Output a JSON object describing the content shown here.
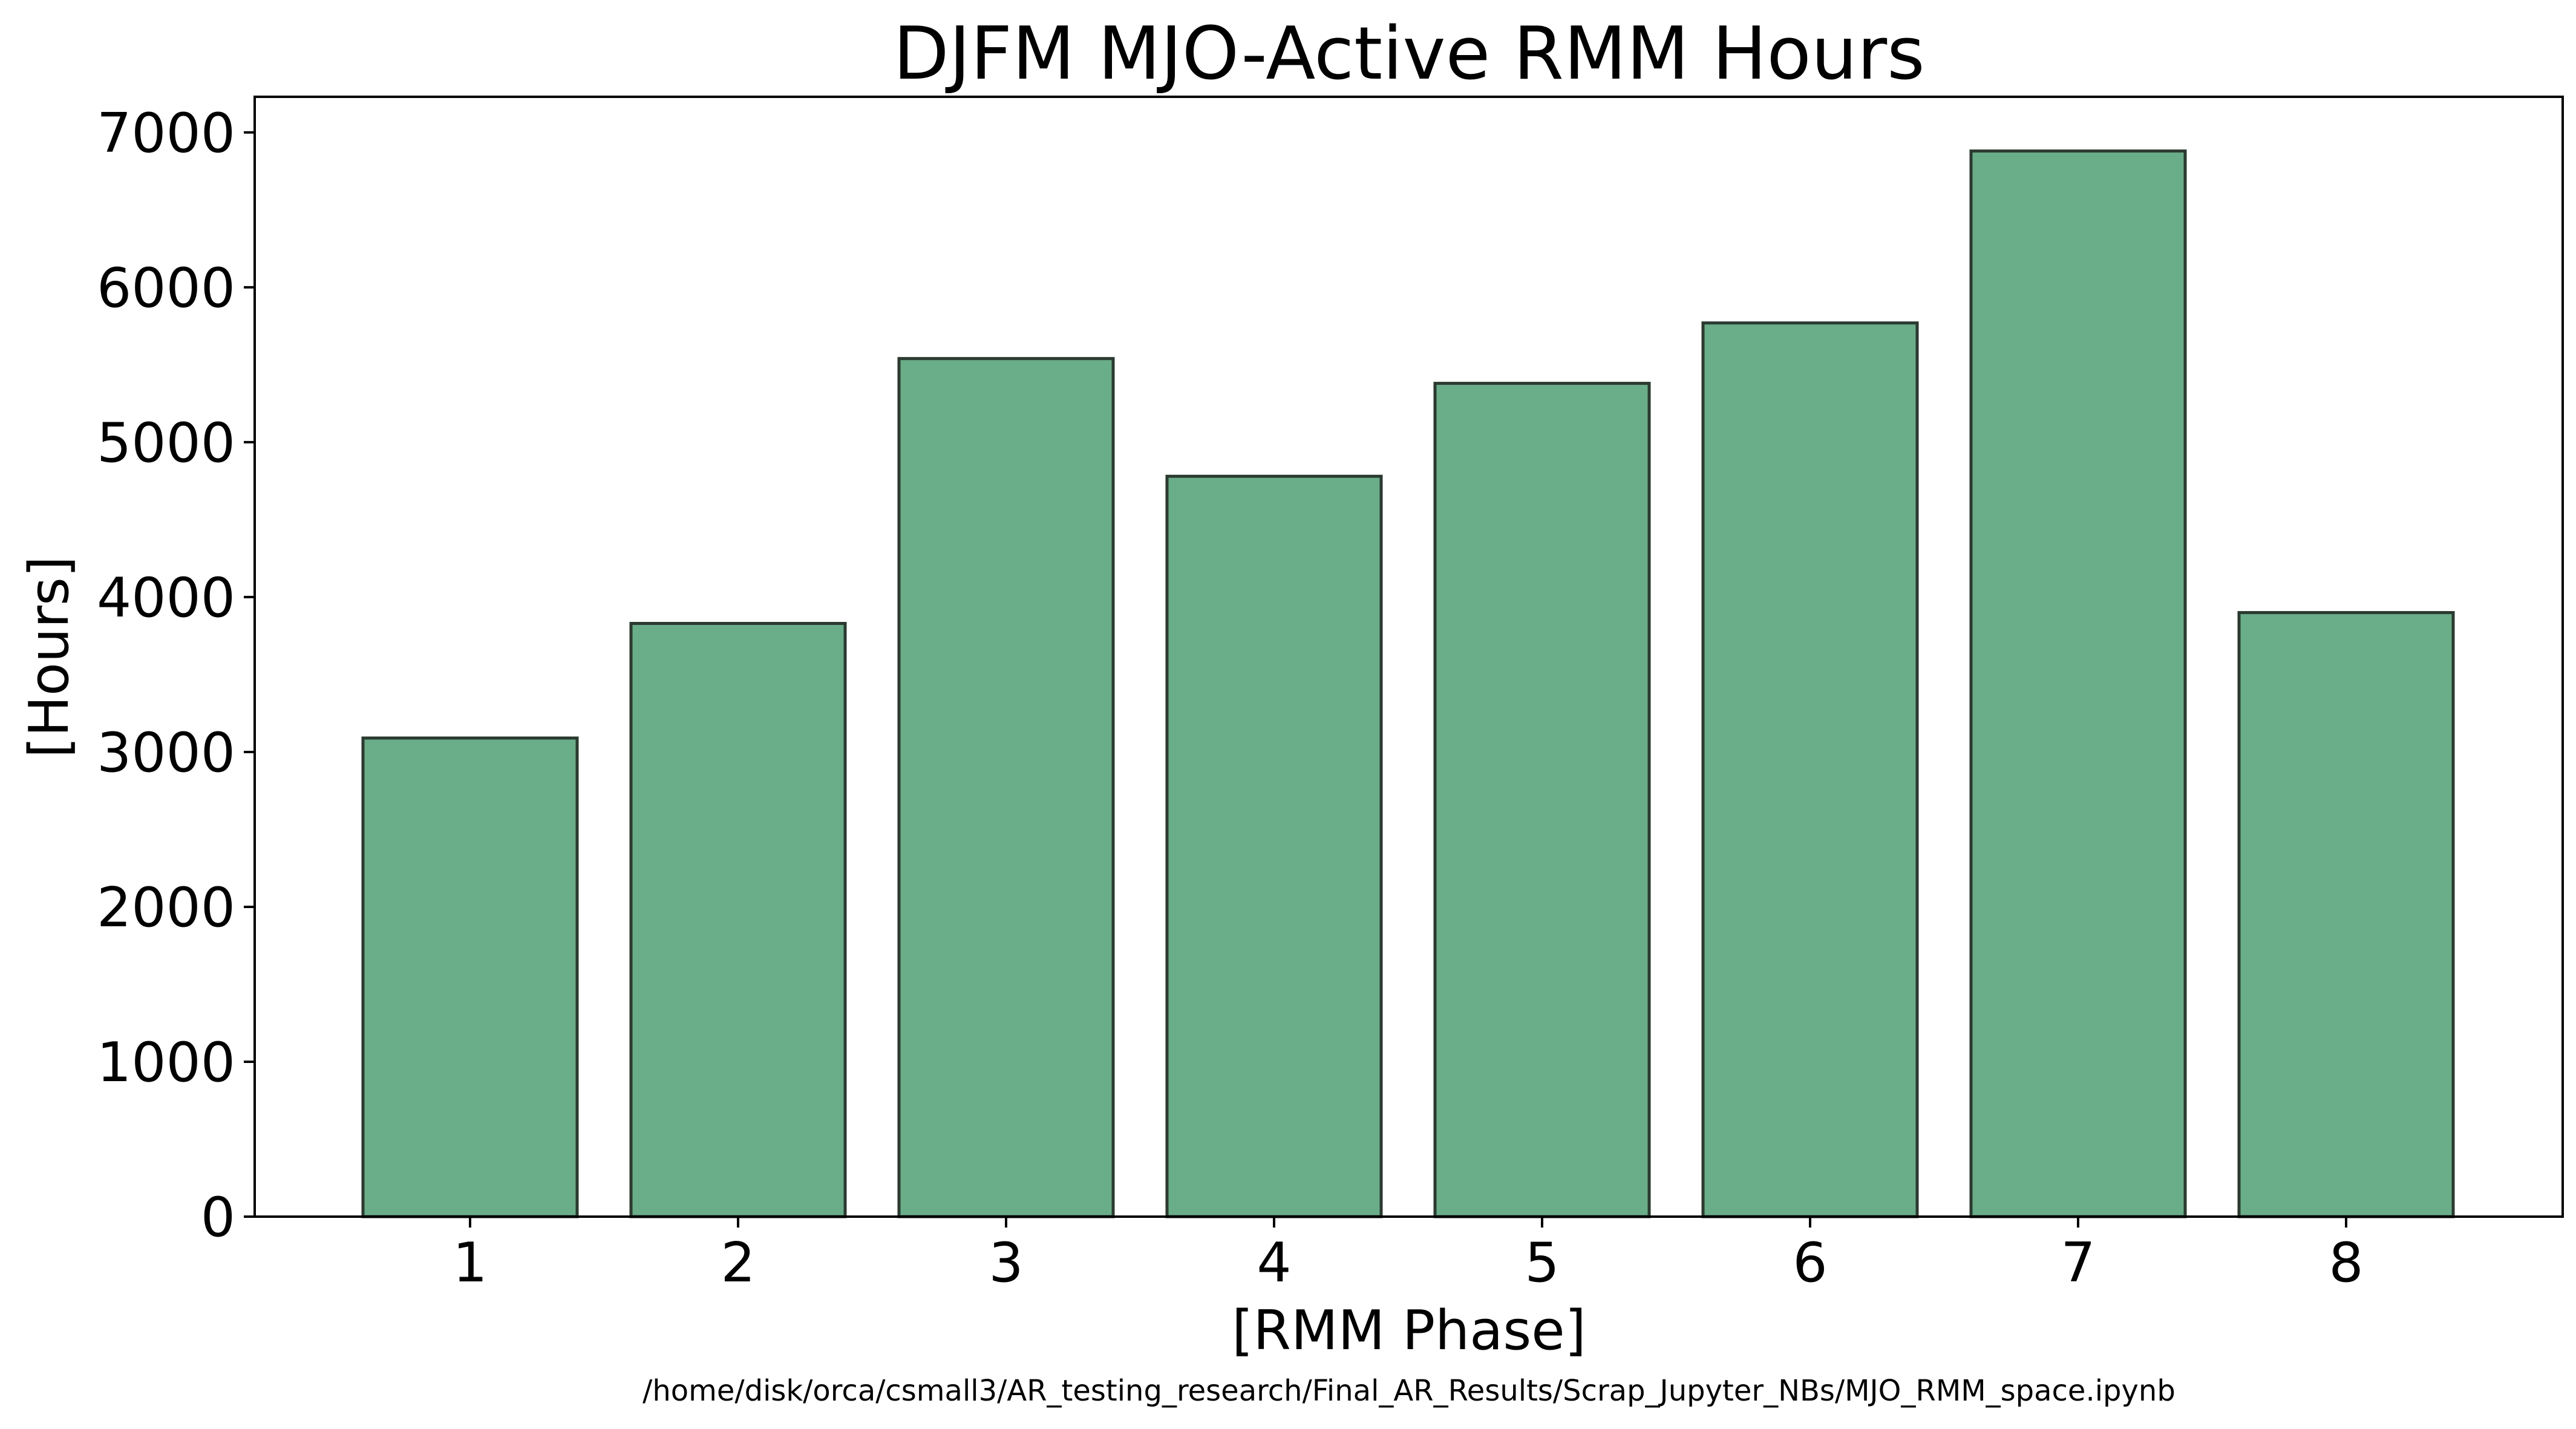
{
  "chart_data": {
    "type": "bar",
    "title": "DJFM MJO-Active RMM Hours",
    "xlabel": "[RMM Phase]",
    "ylabel": "[Hours]",
    "categories": [
      "1",
      "2",
      "3",
      "4",
      "5",
      "6",
      "7",
      "8"
    ],
    "values": [
      3090,
      3830,
      5540,
      4780,
      5380,
      5770,
      6880,
      3900
    ],
    "ylim": [
      0,
      7230
    ],
    "yticks": [
      "0",
      "1000",
      "2000",
      "3000",
      "4000",
      "5000",
      "6000",
      "7000"
    ],
    "grid": false,
    "legend": "none",
    "bar_color": "#6aad89",
    "bar_edge_color": "#2b3a30",
    "footnote": "/home/disk/orca/csmall3/AR_testing_research/Final_AR_Results/Scrap_Jupyter_NBs/MJO_RMM_space.ipynb"
  }
}
